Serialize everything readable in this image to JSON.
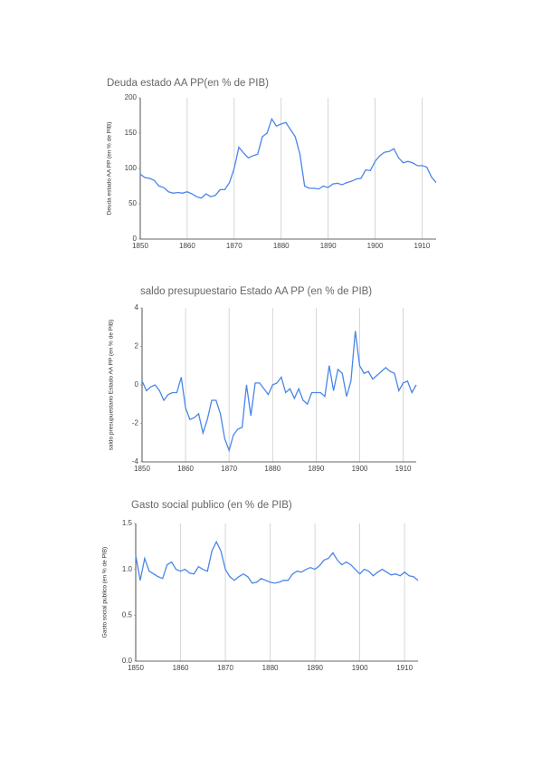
{
  "chart_data": [
    {
      "type": "line",
      "title": "Deuda estado AA PP(en % de PIB)",
      "y_label": "Deuda estado AA PP (en % de PIB)",
      "color": "#4a86e8",
      "grid": true,
      "x": [
        1850,
        1851,
        1852,
        1853,
        1854,
        1855,
        1856,
        1857,
        1858,
        1859,
        1860,
        1861,
        1862,
        1863,
        1864,
        1865,
        1866,
        1867,
        1868,
        1869,
        1870,
        1871,
        1872,
        1873,
        1874,
        1875,
        1876,
        1877,
        1878,
        1879,
        1880,
        1881,
        1882,
        1883,
        1884,
        1885,
        1886,
        1887,
        1888,
        1889,
        1890,
        1891,
        1892,
        1893,
        1894,
        1895,
        1896,
        1897,
        1898,
        1899,
        1900,
        1901,
        1902,
        1903,
        1904,
        1905,
        1906,
        1907,
        1908,
        1909,
        1910,
        1911,
        1912,
        1913
      ],
      "values": [
        92,
        87,
        86,
        83,
        75,
        73,
        67,
        65,
        66,
        65,
        67,
        64,
        60,
        58,
        64,
        60,
        62,
        70,
        70,
        80,
        100,
        130,
        122,
        115,
        118,
        120,
        145,
        150,
        170,
        160,
        163,
        165,
        155,
        145,
        120,
        75,
        72,
        72,
        71,
        75,
        73,
        78,
        79,
        77,
        80,
        82,
        85,
        86,
        98,
        97,
        110,
        118,
        123,
        124,
        128,
        115,
        108,
        110,
        108,
        104,
        104,
        102,
        88,
        80
      ],
      "xlim": [
        1850,
        1913
      ],
      "xticks": [
        1850,
        1860,
        1870,
        1880,
        1890,
        1900,
        1910
      ],
      "ylim": [
        0,
        200
      ],
      "yticks": [
        0,
        50,
        100,
        150,
        200
      ]
    },
    {
      "type": "line",
      "title": "saldo presupuestario Estado AA PP (en % de PIB)",
      "y_label": "saldo presupuestario Estado AA PP (en % de PIB)",
      "color": "#4a86e8",
      "grid": true,
      "x": [
        1850,
        1851,
        1852,
        1853,
        1854,
        1855,
        1856,
        1857,
        1858,
        1859,
        1860,
        1861,
        1862,
        1863,
        1864,
        1865,
        1866,
        1867,
        1868,
        1869,
        1870,
        1871,
        1872,
        1873,
        1874,
        1875,
        1876,
        1877,
        1878,
        1879,
        1880,
        1881,
        1882,
        1883,
        1884,
        1885,
        1886,
        1887,
        1888,
        1889,
        1890,
        1891,
        1892,
        1893,
        1894,
        1895,
        1896,
        1897,
        1898,
        1899,
        1900,
        1901,
        1902,
        1903,
        1904,
        1905,
        1906,
        1907,
        1908,
        1909,
        1910,
        1911,
        1912,
        1913
      ],
      "values": [
        0.2,
        -0.3,
        -0.1,
        0,
        -0.3,
        -0.8,
        -0.5,
        -0.4,
        -0.4,
        0.4,
        -1.2,
        -1.8,
        -1.7,
        -1.5,
        -2.5,
        -1.8,
        -0.8,
        -0.8,
        -1.5,
        -2.8,
        -3.4,
        -2.6,
        -2.3,
        -2.2,
        0,
        -1.6,
        0.1,
        0.1,
        -0.2,
        -0.5,
        0,
        0.1,
        0.4,
        -0.4,
        -0.2,
        -0.7,
        -0.2,
        -0.8,
        -1.0,
        -0.4,
        -0.4,
        -0.4,
        -0.6,
        1.0,
        -0.3,
        0.8,
        0.6,
        -0.6,
        0.2,
        2.8,
        1.0,
        0.6,
        0.7,
        0.3,
        0.5,
        0.7,
        0.9,
        0.7,
        0.6,
        -0.3,
        0.1,
        0.2,
        -0.4,
        0
      ],
      "xlim": [
        1850,
        1913
      ],
      "xticks": [
        1850,
        1860,
        1870,
        1880,
        1890,
        1900,
        1910
      ],
      "ylim": [
        -4,
        4
      ],
      "yticks": [
        -4,
        -2,
        0,
        2,
        4
      ]
    },
    {
      "type": "line",
      "title": "Gasto social publico (en % de PIB)",
      "y_label": "Gasto social publico (en % de PIB)",
      "color": "#4a86e8",
      "grid": true,
      "x": [
        1850,
        1851,
        1852,
        1853,
        1854,
        1855,
        1856,
        1857,
        1858,
        1859,
        1860,
        1861,
        1862,
        1863,
        1864,
        1865,
        1866,
        1867,
        1868,
        1869,
        1870,
        1871,
        1872,
        1873,
        1874,
        1875,
        1876,
        1877,
        1878,
        1879,
        1880,
        1881,
        1882,
        1883,
        1884,
        1885,
        1886,
        1887,
        1888,
        1889,
        1890,
        1891,
        1892,
        1893,
        1894,
        1895,
        1896,
        1897,
        1898,
        1899,
        1900,
        1901,
        1902,
        1903,
        1904,
        1905,
        1906,
        1907,
        1908,
        1909,
        1910,
        1911,
        1912,
        1913
      ],
      "values": [
        1.15,
        0.88,
        1.12,
        0.98,
        0.95,
        0.92,
        0.9,
        1.05,
        1.08,
        1.0,
        0.98,
        1.0,
        0.96,
        0.95,
        1.03,
        1.0,
        0.98,
        1.2,
        1.3,
        1.2,
        1.0,
        0.92,
        0.88,
        0.92,
        0.95,
        0.92,
        0.85,
        0.86,
        0.9,
        0.88,
        0.86,
        0.85,
        0.86,
        0.88,
        0.88,
        0.95,
        0.98,
        0.97,
        1.0,
        1.02,
        1.0,
        1.04,
        1.1,
        1.12,
        1.18,
        1.1,
        1.05,
        1.08,
        1.05,
        1.0,
        0.95,
        1.0,
        0.98,
        0.93,
        0.97,
        1.0,
        0.97,
        0.94,
        0.95,
        0.93,
        0.97,
        0.93,
        0.92,
        0.88
      ],
      "xlim": [
        1850,
        1913
      ],
      "xticks": [
        1850,
        1860,
        1870,
        1880,
        1890,
        1900,
        1910
      ],
      "ylim": [
        0,
        1.5
      ],
      "yticks": [
        {
          "value": 0,
          "label": "0.0"
        },
        {
          "value": 0.5,
          "label": "0.5"
        },
        {
          "value": 1,
          "label": "1.0"
        },
        {
          "value": 1.5,
          "label": "1.5"
        }
      ]
    }
  ]
}
